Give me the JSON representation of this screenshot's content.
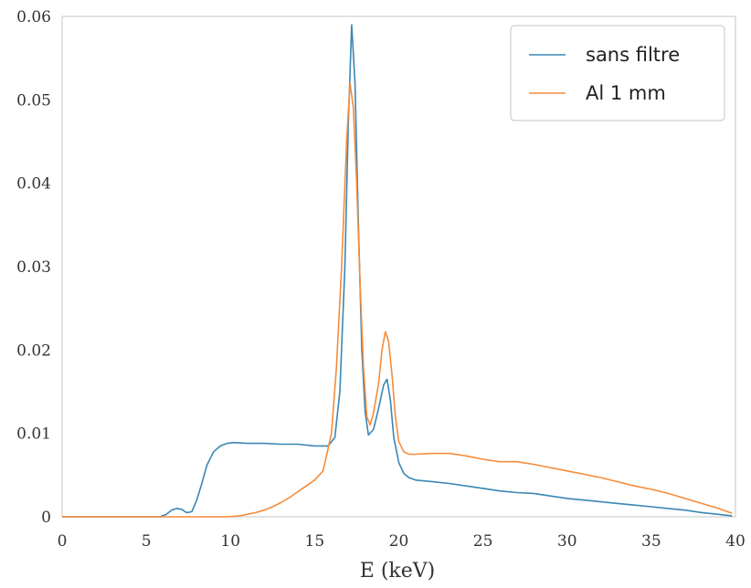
{
  "chart_data": {
    "type": "line",
    "title": "",
    "xlabel": "E (keV)",
    "ylabel": "",
    "xlim": [
      0,
      40
    ],
    "ylim": [
      0,
      0.06
    ],
    "xticks": [
      0,
      5,
      10,
      15,
      20,
      25,
      30,
      35,
      40
    ],
    "xtick_labels": [
      "0",
      "5",
      "10",
      "15",
      "20",
      "25",
      "30",
      "35",
      "40"
    ],
    "yticks": [
      0,
      0.01,
      0.02,
      0.03,
      0.04,
      0.05,
      0.06
    ],
    "ytick_labels": [
      "0",
      "0.01",
      "0.02",
      "0.03",
      "0.04",
      "0.05",
      "0.06"
    ],
    "grid": false,
    "legend_position": "top-right",
    "series": [
      {
        "name": "sans filtre",
        "color": "#3a87b5",
        "x": [
          0,
          5.8,
          6.2,
          6.5,
          6.8,
          7.1,
          7.4,
          7.7,
          8.0,
          8.3,
          8.6,
          9.0,
          9.4,
          9.8,
          10.2,
          11,
          12,
          13,
          14,
          15,
          15.8,
          16.2,
          16.5,
          16.8,
          17.0,
          17.2,
          17.4,
          17.6,
          17.8,
          18.0,
          18.2,
          18.5,
          18.8,
          19.1,
          19.3,
          19.5,
          19.7,
          20.0,
          20.3,
          20.6,
          21,
          22,
          23,
          24,
          25,
          26,
          27,
          28,
          29,
          30,
          31,
          32,
          33,
          34,
          35,
          36,
          37,
          38,
          39,
          39.8
        ],
        "values": [
          0,
          0,
          0.0003,
          0.0008,
          0.001,
          0.0009,
          0.0005,
          0.0006,
          0.002,
          0.004,
          0.0062,
          0.0078,
          0.0085,
          0.0088,
          0.0089,
          0.0088,
          0.0088,
          0.0087,
          0.0087,
          0.0085,
          0.0085,
          0.0095,
          0.015,
          0.03,
          0.047,
          0.059,
          0.052,
          0.035,
          0.02,
          0.0125,
          0.0098,
          0.0105,
          0.013,
          0.0158,
          0.0165,
          0.014,
          0.0095,
          0.0065,
          0.0052,
          0.0047,
          0.0044,
          0.0042,
          0.004,
          0.0037,
          0.0034,
          0.0031,
          0.0029,
          0.0028,
          0.0025,
          0.0022,
          0.002,
          0.0018,
          0.0016,
          0.0014,
          0.0012,
          0.001,
          0.0008,
          0.0005,
          0.0003,
          0.0001
        ]
      },
      {
        "name": "Al 1 mm",
        "color": "#f58b3b",
        "x": [
          0,
          9.8,
          10.5,
          11,
          11.5,
          12,
          12.5,
          13,
          13.5,
          14,
          14.5,
          15,
          15.5,
          16,
          16.3,
          16.6,
          16.9,
          17.1,
          17.3,
          17.5,
          17.7,
          17.9,
          18.1,
          18.3,
          18.5,
          18.8,
          19.0,
          19.2,
          19.4,
          19.6,
          19.8,
          20.0,
          20.3,
          20.6,
          21,
          22,
          23,
          24,
          25,
          26,
          27,
          28,
          29,
          30,
          31,
          32,
          33,
          34,
          35,
          36,
          37,
          38,
          39,
          39.8
        ],
        "values": [
          0,
          0,
          0.0001,
          0.0003,
          0.0005,
          0.0008,
          0.0012,
          0.0017,
          0.0023,
          0.003,
          0.0037,
          0.0044,
          0.0055,
          0.01,
          0.018,
          0.03,
          0.045,
          0.052,
          0.049,
          0.04,
          0.028,
          0.018,
          0.012,
          0.011,
          0.0125,
          0.016,
          0.02,
          0.0222,
          0.021,
          0.017,
          0.012,
          0.009,
          0.0078,
          0.0075,
          0.0075,
          0.0076,
          0.0076,
          0.0073,
          0.0069,
          0.0066,
          0.0066,
          0.0063,
          0.0059,
          0.0055,
          0.0051,
          0.0047,
          0.0042,
          0.0037,
          0.0033,
          0.0028,
          0.0022,
          0.0016,
          0.001,
          0.0004
        ]
      }
    ]
  }
}
